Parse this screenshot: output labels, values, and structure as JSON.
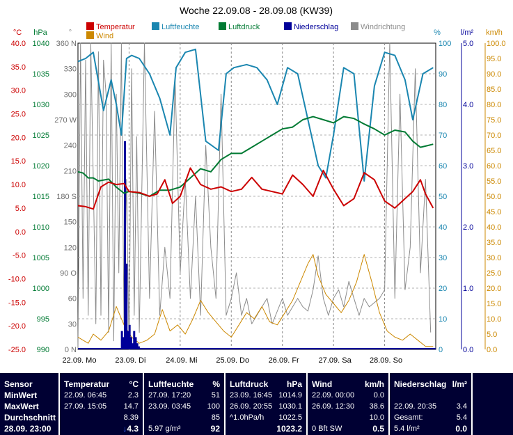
{
  "chart_data": {
    "type": "line",
    "title": "Woche 22.09.08 - 28.09.08 (KW39)",
    "legend": [
      "Temperatur",
      "Luftfeuchte",
      "Luftdruck",
      "Niederschlag",
      "Windrichtung",
      "Wind"
    ],
    "colors": {
      "temp": "#cc0000",
      "hum": "#1a86b0",
      "press": "#007a33",
      "rain": "#000099",
      "dir": "#8c8c8c",
      "wind": "#cc8800"
    },
    "x_labels": [
      "22.09.  Mo",
      "23.09.  Di",
      "24.09.  Mi",
      "25.09.  Do",
      "26.09.  Fr",
      "27.09.  Sa",
      "28.09.  So"
    ],
    "axes": {
      "temp": {
        "unit": "°C",
        "ticks": [
          "40.0",
          "35.0",
          "30.0",
          "25.0",
          "20.0",
          "15.0",
          "10.0",
          "5.0",
          "0.0",
          "-5.0",
          "-10.0",
          "-15.0",
          "-20.0",
          "-25.0"
        ],
        "range": [
          -25,
          40
        ]
      },
      "press": {
        "unit": "hPa",
        "ticks": [
          "1040",
          "1035",
          "1030",
          "1025",
          "1020",
          "1015",
          "1010",
          "1005",
          "1000",
          "995",
          "990"
        ],
        "range": [
          990,
          1040
        ]
      },
      "dir": {
        "unit": "°",
        "ticks": [
          "360 N",
          "330",
          "300",
          "270 W",
          "240",
          "210",
          "180 S",
          "150",
          "120",
          "90 O",
          "60",
          "30",
          "0 N"
        ],
        "range": [
          0,
          360
        ]
      },
      "hum": {
        "unit": "%",
        "ticks": [
          "100",
          "90",
          "80",
          "70",
          "60",
          "50",
          "40",
          "30",
          "20",
          "10",
          "0"
        ],
        "range": [
          0,
          100
        ]
      },
      "rain": {
        "unit": "l/m²",
        "ticks": [
          "5.0",
          "4.0",
          "3.0",
          "2.0",
          "1.0",
          "0.0"
        ],
        "range": [
          0,
          5
        ]
      },
      "wind": {
        "unit": "km/h",
        "ticks": [
          "100.0",
          "95.0",
          "90.0",
          "85.0",
          "80.0",
          "75.0",
          "70.0",
          "65.0",
          "60.0",
          "55.0",
          "50.0",
          "45.0",
          "40.0",
          "35.0",
          "30.0",
          "25.0",
          "20.0",
          "15.0",
          "10.0",
          "5.0",
          "0.0"
        ],
        "range": [
          0,
          100
        ]
      }
    },
    "series": [
      {
        "name": "Temperatur",
        "key": "temp",
        "x": [
          0,
          0.15,
          0.3,
          0.45,
          0.6,
          0.75,
          0.9,
          1.0,
          1.2,
          1.4,
          1.55,
          1.7,
          1.85,
          2.0,
          2.2,
          2.4,
          2.6,
          2.8,
          3.0,
          3.2,
          3.4,
          3.6,
          3.8,
          4.0,
          4.2,
          4.4,
          4.6,
          4.8,
          5.0,
          5.2,
          5.4,
          5.6,
          5.8,
          6.0,
          6.2,
          6.4,
          6.55,
          6.7,
          6.8,
          6.95
        ],
        "y": [
          5.5,
          5.3,
          4.8,
          9.5,
          10.5,
          10.0,
          10.2,
          8.5,
          8.3,
          7.5,
          8.0,
          11.0,
          6.0,
          7.5,
          13.5,
          10.0,
          9.0,
          9.5,
          8.5,
          9.0,
          11.5,
          9.0,
          8.5,
          8.0,
          12.0,
          10.0,
          7.5,
          13.0,
          9.0,
          5.5,
          7.0,
          12.5,
          11.0,
          6.5,
          5.0,
          7.0,
          8.5,
          11.0,
          8.0,
          5.0
        ]
      },
      {
        "name": "Luftfeuchte",
        "key": "hum",
        "x": [
          0,
          0.15,
          0.3,
          0.5,
          0.65,
          0.75,
          0.85,
          0.95,
          1.05,
          1.2,
          1.4,
          1.6,
          1.8,
          1.92,
          2.1,
          2.3,
          2.5,
          2.75,
          2.9,
          3.05,
          3.3,
          3.5,
          3.7,
          3.9,
          4.1,
          4.3,
          4.5,
          4.7,
          4.85,
          5.0,
          5.2,
          5.4,
          5.6,
          5.8,
          6.0,
          6.2,
          6.4,
          6.55,
          6.75,
          6.95
        ],
        "y": [
          94,
          95,
          97,
          78,
          88,
          80,
          70,
          95,
          96,
          95,
          90,
          82,
          70,
          92,
          97,
          98,
          68,
          65,
          90,
          92,
          93,
          92,
          88,
          80,
          92,
          90,
          75,
          60,
          56,
          70,
          92,
          90,
          55,
          86,
          97,
          96,
          88,
          75,
          90,
          92
        ]
      },
      {
        "name": "Luftdruck",
        "key": "press",
        "x": [
          0,
          0.1,
          0.2,
          0.3,
          0.4,
          0.6,
          0.75,
          0.9,
          1.0,
          1.2,
          1.4,
          1.6,
          1.8,
          2.0,
          2.2,
          2.4,
          2.6,
          2.8,
          3.0,
          3.2,
          3.4,
          3.6,
          3.8,
          4.0,
          4.2,
          4.4,
          4.6,
          4.8,
          5.0,
          5.2,
          5.4,
          5.6,
          5.8,
          6.0,
          6.2,
          6.4,
          6.55,
          6.7,
          6.85,
          6.95
        ],
        "y": [
          1019,
          1018.8,
          1018,
          1018,
          1017.5,
          1017.8,
          1016.5,
          1015.5,
          1015.8,
          1015.5,
          1015,
          1016,
          1016,
          1016.5,
          1018,
          1019.5,
          1019,
          1021,
          1022,
          1022,
          1023,
          1024,
          1025,
          1026,
          1026.3,
          1027.5,
          1028,
          1027.5,
          1027,
          1028,
          1027.7,
          1026.8,
          1026,
          1025,
          1025.8,
          1025.5,
          1024,
          1023,
          1023.3,
          1023.5
        ]
      },
      {
        "name": "Niederschlag",
        "key": "rain",
        "x": [
          0.83,
          0.86,
          0.89,
          0.92,
          0.95,
          0.98,
          1.01,
          1.04,
          1.07,
          1.1,
          1.13,
          1.16,
          1.19,
          1.22
        ],
        "y": [
          0.0,
          0.3,
          0.2,
          3.4,
          1.4,
          0.3,
          0.4,
          0.2,
          0.1,
          0.3,
          0.2,
          0.1,
          0.05,
          0.0
        ]
      },
      {
        "name": "Windrichtung",
        "key": "dir",
        "x": [
          0,
          0.05,
          0.1,
          0.15,
          0.2,
          0.25,
          0.3,
          0.35,
          0.4,
          0.45,
          0.5,
          0.55,
          0.6,
          0.65,
          0.7,
          0.75,
          0.8,
          0.85,
          0.9,
          0.95,
          1.0,
          1.05,
          1.1,
          1.15,
          1.2,
          1.3,
          1.4,
          1.5,
          1.6,
          1.7,
          1.8,
          1.9,
          2.0,
          2.1,
          2.2,
          2.3,
          2.4,
          2.5,
          2.6,
          2.7,
          2.8,
          2.9,
          3.0,
          3.1,
          3.2,
          3.3,
          3.4,
          3.5,
          3.6,
          3.7,
          3.8,
          3.9,
          4.0,
          4.1,
          4.2,
          4.3,
          4.4,
          4.5,
          4.6,
          4.7,
          4.8,
          4.9,
          5.0,
          5.1,
          5.2,
          5.3,
          5.4,
          5.5,
          5.6,
          5.7,
          5.8,
          5.9,
          6.0,
          6.1,
          6.2,
          6.3,
          6.4,
          6.5,
          6.6,
          6.7,
          6.8,
          6.9
        ],
        "y": [
          0,
          360,
          60,
          340,
          40,
          360,
          200,
          30,
          350,
          40,
          340,
          300,
          20,
          360,
          10,
          300,
          90,
          360,
          30,
          200,
          0,
          330,
          40,
          250,
          20,
          360,
          60,
          280,
          40,
          120,
          60,
          320,
          90,
          200,
          60,
          180,
          40,
          240,
          120,
          60,
          300,
          40,
          60,
          90,
          40,
          60,
          30,
          40,
          50,
          60,
          30,
          45,
          60,
          40,
          50,
          60,
          50,
          45,
          70,
          110,
          60,
          40,
          60,
          70,
          50,
          80,
          60,
          40,
          60,
          50,
          55,
          60,
          70,
          360,
          60,
          300,
          70,
          120,
          330,
          90,
          200,
          20
        ]
      },
      {
        "name": "Wind",
        "key": "wind",
        "x": [
          0,
          0.1,
          0.2,
          0.3,
          0.45,
          0.6,
          0.75,
          0.9,
          1.05,
          1.2,
          1.35,
          1.5,
          1.65,
          1.8,
          1.95,
          2.1,
          2.25,
          2.4,
          2.55,
          2.7,
          2.85,
          3.0,
          3.15,
          3.3,
          3.45,
          3.6,
          3.75,
          3.9,
          4.05,
          4.2,
          4.35,
          4.5,
          4.6,
          4.7,
          4.85,
          5.0,
          5.15,
          5.3,
          5.45,
          5.6,
          5.75,
          5.9,
          6.05,
          6.2,
          6.35,
          6.5,
          6.65,
          6.8,
          6.95
        ],
        "y": [
          4,
          3,
          2,
          5,
          3,
          6,
          14,
          8,
          4,
          2,
          3,
          5,
          13,
          6,
          8,
          5,
          10,
          16,
          12,
          9,
          6,
          4,
          8,
          12,
          10,
          14,
          9,
          8,
          12,
          16,
          22,
          28,
          31,
          24,
          18,
          15,
          12,
          16,
          22,
          31,
          22,
          12,
          6,
          4,
          3,
          5,
          3,
          1,
          1
        ]
      }
    ]
  },
  "footer": {
    "sensor": {
      "title": "Sensor",
      "min": "MinWert",
      "max": "MaxWert",
      "avg": "Durchschnitt",
      "now": "28.09. 23:00"
    },
    "temp": {
      "title": "Temperatur",
      "unit": "°C",
      "min_time": "22.09.  06:45",
      "min_val": "2.3",
      "max_time": "27.09.  15:05",
      "max_val": "14.7",
      "avg_val": "8.39",
      "now_arrow": "↓",
      "now_val": "4.3"
    },
    "hum": {
      "title": "Luftfeuchte",
      "unit": "%",
      "min_time": "27.09.  17:20",
      "min_val": "51",
      "max_time": "23.09.  03:45",
      "max_val": "100",
      "avg_val": "85",
      "abs_val": "5.97 g/m³",
      "now_val": "92"
    },
    "press": {
      "title": "Luftdruck",
      "unit": "hPa",
      "min_time": "23.09.  16:45",
      "min_val": "1014.9",
      "max_time": "26.09.  20:55",
      "max_val": "1030.1",
      "trend": "^1.0hPa/h",
      "avg_val": "1022.5",
      "now_val": "1023.2"
    },
    "wind": {
      "title": "Wind",
      "unit": "km/h",
      "min_time": "22.09.  00:00",
      "min_val": "0.0",
      "max_time": "26.09.  12:30",
      "max_val": "38.6",
      "avg_val": "10.0",
      "bft": "0 Bft SW",
      "now_val": "0.5"
    },
    "rain": {
      "title": "Niederschlag",
      "unit": "l/m²",
      "max_time": "22.09.  20:35",
      "max_val": "3.4",
      "total_label": "Gesamt:",
      "total_val": "5.4",
      "rate": "5.4 l/m²",
      "now_val": "0.0"
    }
  }
}
